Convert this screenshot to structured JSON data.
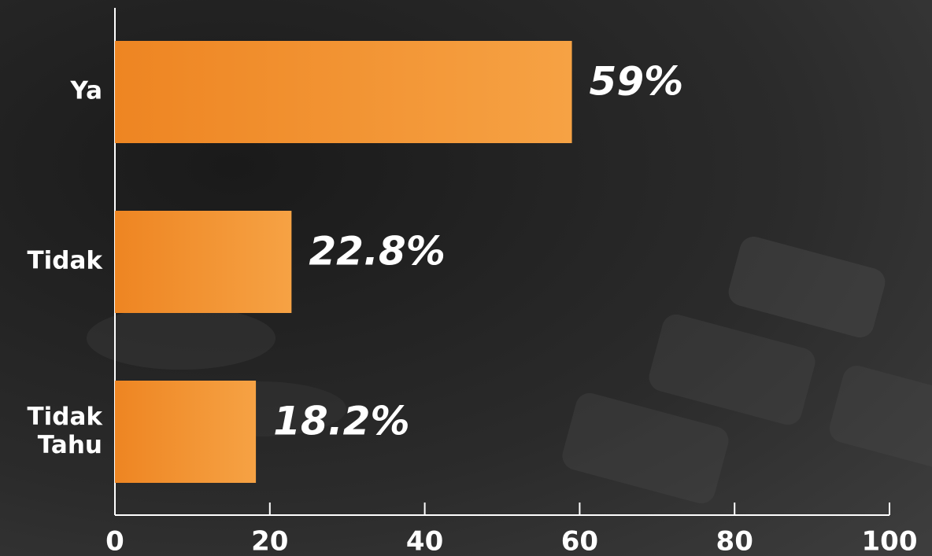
{
  "chart_data": {
    "type": "bar",
    "orientation": "horizontal",
    "categories": [
      "Ya",
      "Tidak",
      "Tidak Tahu"
    ],
    "values": [
      59,
      22.8,
      18.2
    ],
    "value_labels": [
      "59%",
      "22.8%",
      "18.2%"
    ],
    "color": "#f28c28",
    "xlim": [
      0,
      100
    ],
    "xticks": [
      0,
      20,
      40,
      60,
      80,
      100
    ]
  }
}
